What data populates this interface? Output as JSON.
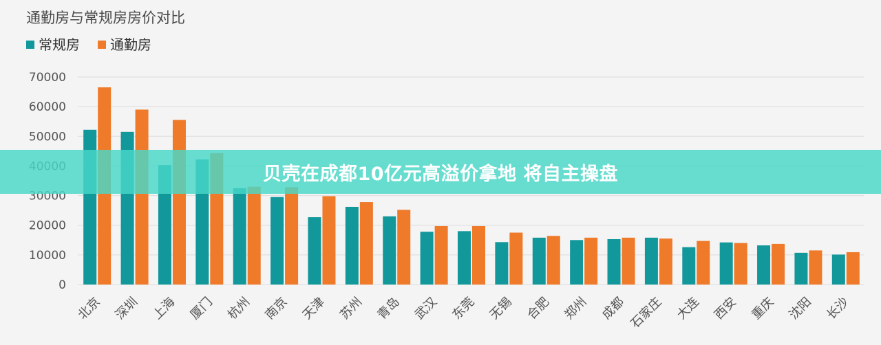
{
  "banner": {
    "text": "贝壳在成都10亿元高溢价拿地 将自主操盘"
  },
  "colors": {
    "regular": "#12979a",
    "commute": "#ef7a2a"
  },
  "chart_data": {
    "type": "bar",
    "title": "通勤房与常规房房价对比",
    "xlabel": "",
    "ylabel": "",
    "ylim": [
      0,
      70000
    ],
    "yticks": [
      "0",
      "10000",
      "20000",
      "30000",
      "40000",
      "50000",
      "60000",
      "70000"
    ],
    "grid": true,
    "legend_position": "top-left",
    "categories": [
      "北京",
      "深圳",
      "上海",
      "厦门",
      "杭州",
      "南京",
      "天津",
      "苏州",
      "青岛",
      "武汉",
      "东莞",
      "无锡",
      "合肥",
      "郑州",
      "成都",
      "石家庄",
      "大连",
      "西安",
      "重庆",
      "沈阳",
      "长沙"
    ],
    "series": [
      {
        "name": "常规房",
        "values": [
          52200,
          51500,
          40300,
          42200,
          32500,
          29500,
          22700,
          26200,
          23000,
          17800,
          18000,
          14300,
          15800,
          15000,
          15300,
          15800,
          12600,
          14200,
          13200,
          10700,
          10100
        ]
      },
      {
        "name": "通勤房",
        "values": [
          66500,
          59000,
          55500,
          44300,
          33000,
          32800,
          29800,
          27800,
          25200,
          19700,
          19700,
          17500,
          16400,
          15800,
          15800,
          15500,
          14700,
          14000,
          13700,
          11500,
          10900
        ]
      }
    ]
  }
}
